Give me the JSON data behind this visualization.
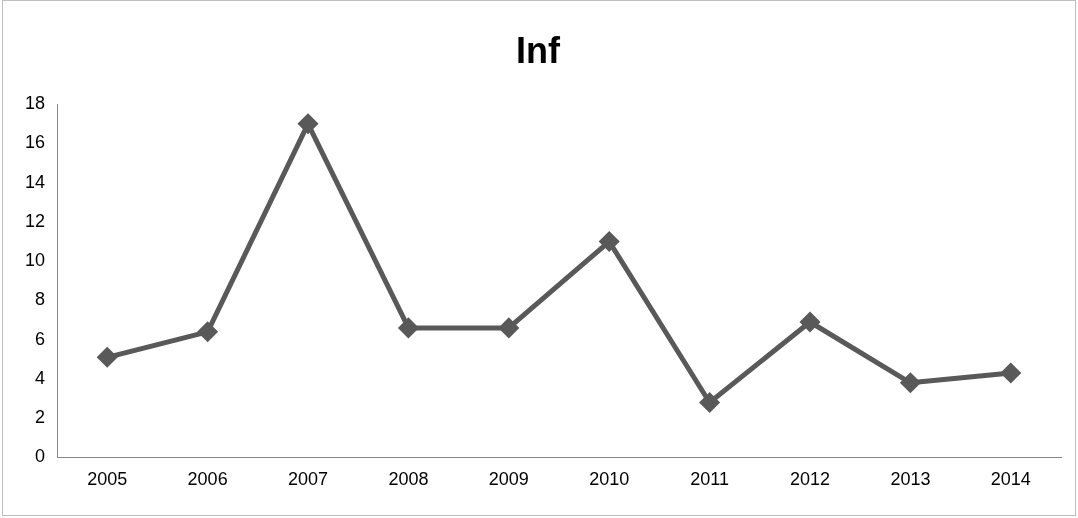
{
  "chart_data": {
    "type": "line",
    "title": "Inf",
    "categories": [
      "2005",
      "2006",
      "2007",
      "2008",
      "2009",
      "2010",
      "2011",
      "2012",
      "2013",
      "2014"
    ],
    "series": [
      {
        "color": "#595959",
        "values": [
          5.1,
          6.4,
          17.0,
          6.6,
          6.6,
          11.0,
          2.8,
          6.9,
          3.8,
          4.3
        ]
      }
    ],
    "ylim": [
      0,
      18
    ],
    "yticks": [
      0,
      2,
      4,
      6,
      8,
      10,
      12,
      14,
      16,
      18
    ],
    "grid": false,
    "legend": false,
    "marker": "diamond",
    "line_style": "solid"
  }
}
